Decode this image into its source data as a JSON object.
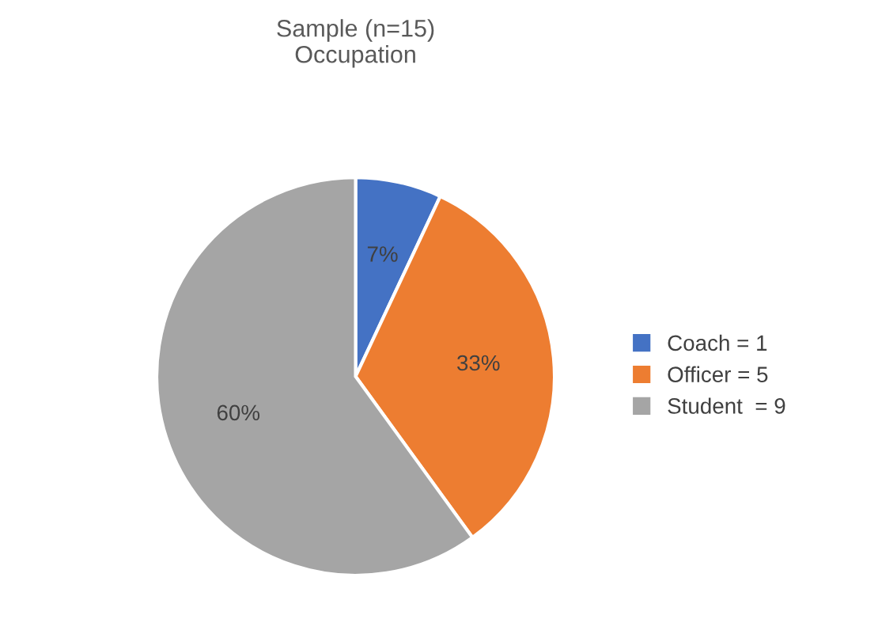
{
  "chart_data": {
    "type": "pie",
    "title": "Sample (n=15)\nOccupation",
    "categories": [
      "Coach = 1",
      "Officer = 5",
      "Student  = 9"
    ],
    "values": [
      7,
      33,
      60
    ],
    "value_labels": [
      "7%",
      "33%",
      "60%"
    ],
    "colors": [
      "#4472c4",
      "#ed7d31",
      "#a5a5a5"
    ],
    "legend": "right"
  }
}
